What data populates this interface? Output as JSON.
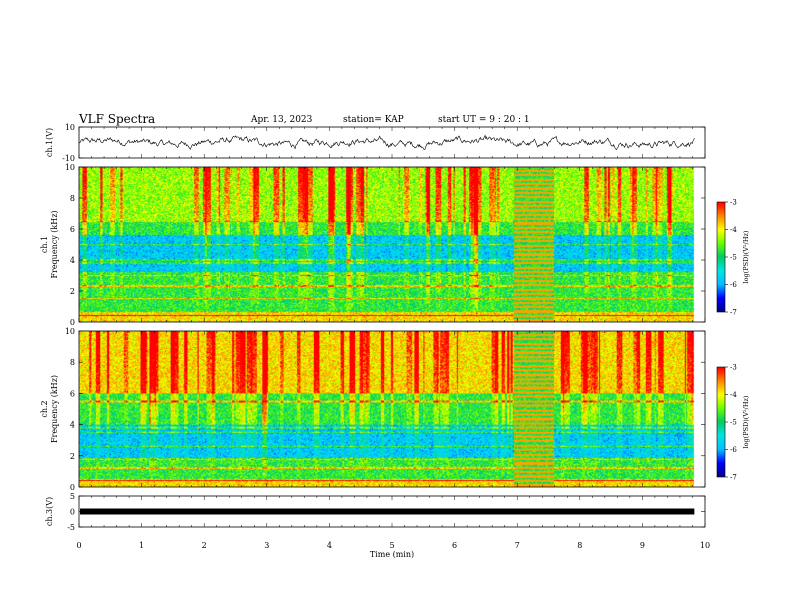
{
  "header": {
    "title": "VLF Spectra",
    "date": "Apr. 13, 2023",
    "station": "station= KAP",
    "start": "start UT =  9 : 20 : 1"
  },
  "chart_data": [
    {
      "type": "line",
      "panel": "ch1-waveform",
      "ylabel": "ch.1(V)",
      "ylim": [
        -10,
        10
      ],
      "yticks": [
        "10",
        "-10"
      ],
      "x_range_min": [
        0,
        9.83
      ],
      "y_mean": 0,
      "y_amplitude": 3,
      "color": "#000000"
    },
    {
      "type": "heatmap",
      "panel": "ch1-spectrogram",
      "ylabel": "ch.1\nFrequency (kHz)",
      "ylim": [
        0,
        10
      ],
      "yticks": [
        "0",
        "2",
        "4",
        "6",
        "8",
        "10"
      ],
      "x_range_min": [
        0,
        9.83
      ],
      "colorbar": {
        "label": "log(PSD)(V²/Hz)",
        "range": [
          -7,
          -3
        ],
        "ticks": [
          "-3",
          "-4",
          "-5",
          "-6",
          "-7"
        ]
      },
      "event_interval_min": [
        6.95,
        7.6
      ],
      "bands_khz": [
        {
          "from": 0,
          "to": 0.6,
          "level": "high"
        },
        {
          "from": 0.6,
          "to": 1.8,
          "level": "mid"
        },
        {
          "from": 1.8,
          "to": 3.2,
          "level": "mid"
        },
        {
          "from": 3.2,
          "to": 4.2,
          "level": "low"
        },
        {
          "from": 4.2,
          "to": 5.6,
          "level": "low"
        },
        {
          "from": 5.6,
          "to": 6.5,
          "level": "mid"
        },
        {
          "from": 6.5,
          "to": 10,
          "level": "mid-high"
        }
      ],
      "line_khz": [
        0.4,
        1.5,
        2.3,
        3.0,
        3.8,
        4.0,
        5.0,
        6.5
      ]
    },
    {
      "type": "heatmap",
      "panel": "ch2-spectrogram",
      "ylabel": "ch.2\nFrequency (kHz)",
      "ylim": [
        0,
        10
      ],
      "yticks": [
        "0",
        "2",
        "4",
        "6",
        "8",
        "10"
      ],
      "x_range_min": [
        0,
        9.83
      ],
      "colorbar": {
        "label": "log(PSD)(V²/Hz)",
        "range": [
          -7,
          -3
        ],
        "ticks": [
          "-3",
          "-4",
          "-5",
          "-6",
          "-7"
        ]
      },
      "event_interval_min": [
        6.95,
        7.6
      ],
      "bands_khz": [
        {
          "from": 0,
          "to": 0.5,
          "level": "high"
        },
        {
          "from": 0.5,
          "to": 1.8,
          "level": "mid"
        },
        {
          "from": 1.8,
          "to": 2.8,
          "level": "low"
        },
        {
          "from": 2.8,
          "to": 4.0,
          "level": "low"
        },
        {
          "from": 4.0,
          "to": 6.0,
          "level": "mid"
        },
        {
          "from": 6.0,
          "to": 10,
          "level": "high"
        }
      ],
      "line_khz": [
        0.4,
        1.2,
        1.8,
        2.6,
        3.5,
        3.8,
        5.5
      ]
    },
    {
      "type": "line",
      "panel": "ch3-waveform",
      "ylabel": "ch.3(V)",
      "ylim": [
        -5,
        5
      ],
      "yticks": [
        "5",
        "0",
        "-5"
      ],
      "x_range_min": [
        0,
        9.83
      ],
      "y_level": 0,
      "color": "#000000"
    }
  ],
  "xaxis": {
    "label": "Time (min)",
    "range": [
      0,
      10
    ],
    "ticks": [
      "0",
      "1",
      "2",
      "3",
      "4",
      "5",
      "6",
      "7",
      "8",
      "9",
      "10"
    ]
  },
  "colors": {
    "colormap": [
      "#00008b",
      "#0000ff",
      "#00bfff",
      "#00e5e5",
      "#00cc66",
      "#66ff00",
      "#ffff00",
      "#ff8800",
      "#ff0000",
      "#ffffff"
    ]
  }
}
